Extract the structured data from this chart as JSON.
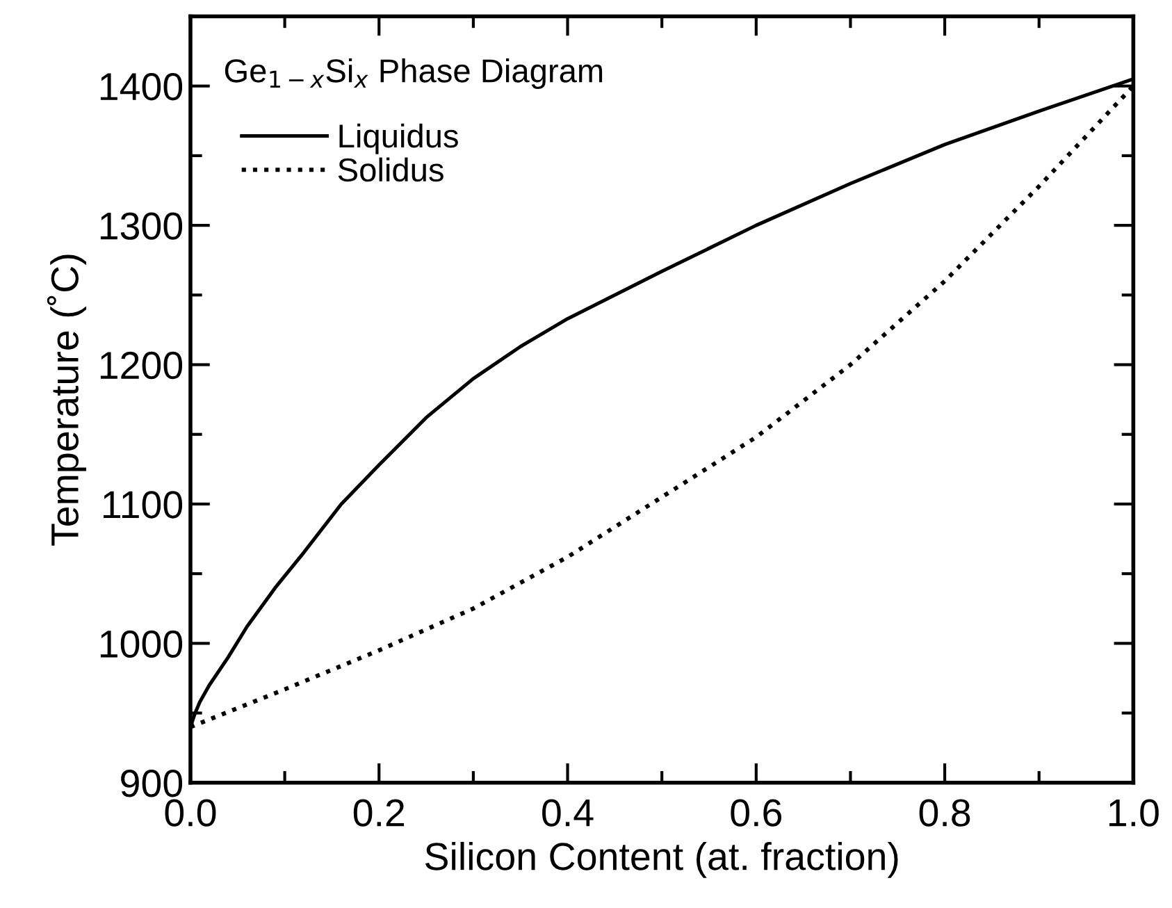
{
  "chart_data": {
    "type": "line",
    "title": "Ge$_{1−x}$Si$_{x}$ Phase Diagram",
    "xlabel": "Silicon Content (at. fraction)",
    "ylabel": "Temperature (˚C)",
    "xlim": [
      0,
      1
    ],
    "ylim": [
      900,
      1450
    ],
    "xticks": [
      {
        "value": 0,
        "label": "0.0"
      },
      {
        "value": 0.1,
        "label": null
      },
      {
        "value": 0.2,
        "label": "0.2"
      },
      {
        "value": 0.3,
        "label": null
      },
      {
        "value": 0.4,
        "label": "0.4"
      },
      {
        "value": 0.5,
        "label": null
      },
      {
        "value": 0.6,
        "label": "0.6"
      },
      {
        "value": 0.7,
        "label": null
      },
      {
        "value": 0.8,
        "label": "0.8"
      },
      {
        "value": 0.9,
        "label": null
      },
      {
        "value": 1,
        "label": "1.0"
      }
    ],
    "yticks": [
      900,
      {
        "value": 950,
        "label": null
      },
      1000,
      {
        "value": 1050,
        "label": null
      },
      1100,
      {
        "value": 1150,
        "label": null
      },
      1200,
      {
        "value": 1250,
        "label": null
      },
      1300,
      {
        "value": 1350,
        "label": null
      },
      1400
    ],
    "grid": false,
    "legend": "top left",
    "series": [
      {
        "name": "Liquidus",
        "color": "#000000",
        "line_style": "solid",
        "x": [
          0,
          0.005,
          0.01,
          0.02,
          0.04,
          0.06,
          0.09,
          0.12,
          0.16,
          0.2,
          0.25,
          0.3,
          0.35,
          0.4,
          0.5,
          0.6,
          0.7,
          0.8,
          0.9,
          1.0
        ],
        "values": [
          940,
          950,
          958,
          970,
          990,
          1012,
          1040,
          1065,
          1100,
          1128,
          1162,
          1190,
          1213,
          1233,
          1267,
          1300,
          1330,
          1358,
          1382,
          1405
        ]
      },
      {
        "name": "Solidus",
        "color": "#000000",
        "line_style": "dotted",
        "x": [
          0,
          0.1,
          0.2,
          0.3,
          0.4,
          0.5,
          0.6,
          0.7,
          0.8,
          0.9,
          1.0
        ],
        "values": [
          940,
          967,
          995,
          1025,
          1062,
          1105,
          1148,
          1200,
          1260,
          1328,
          1400
        ]
      }
    ]
  }
}
